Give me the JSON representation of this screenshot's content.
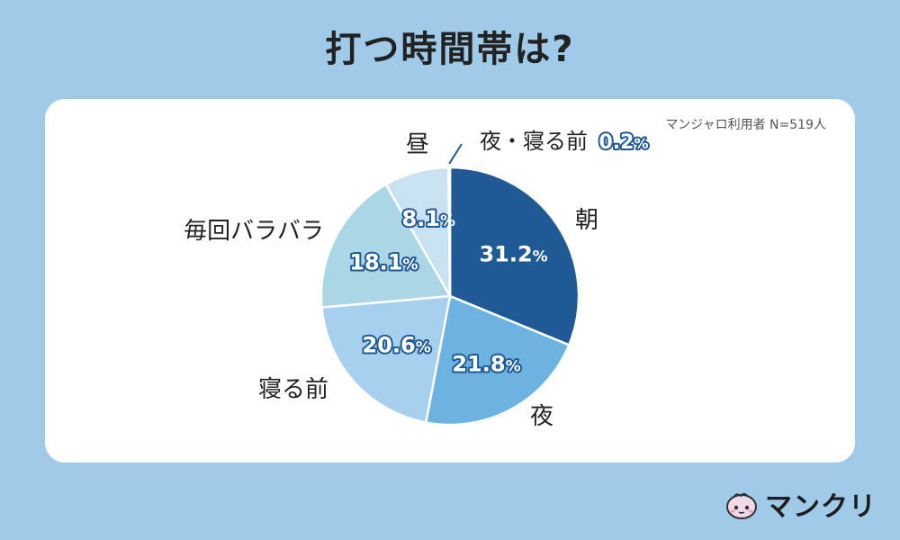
{
  "header": {
    "title": "打つ時間帯は?"
  },
  "note": "マンジャロ利用者 N=519人",
  "brand": {
    "name": "マンクリ"
  },
  "chart_data": {
    "type": "pie",
    "percent_suffix": "%",
    "slices": [
      {
        "label": "朝",
        "value": 31.2,
        "display": "31.2",
        "color": "#1f5a96"
      },
      {
        "label": "夜",
        "value": 21.8,
        "display": "21.8",
        "color": "#6db3e2"
      },
      {
        "label": "寝る前",
        "value": 20.6,
        "display": "20.6",
        "color": "#a6d0ee"
      },
      {
        "label": "毎回バラバラ",
        "value": 18.1,
        "display": "18.1",
        "color": "#abd6e6"
      },
      {
        "label": "昼",
        "value": 8.1,
        "display": "8.1",
        "color": "#c9e2f2"
      },
      {
        "label": "夜・寝る前",
        "value": 0.2,
        "display": "0.2",
        "color": "#e6f1fa"
      }
    ]
  }
}
